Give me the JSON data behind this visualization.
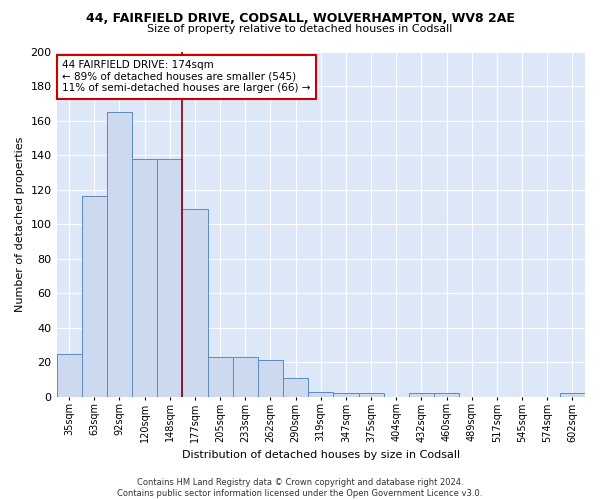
{
  "title_line1": "44, FAIRFIELD DRIVE, CODSALL, WOLVERHAMPTON, WV8 2AE",
  "title_line2": "Size of property relative to detached houses in Codsall",
  "xlabel": "Distribution of detached houses by size in Codsall",
  "ylabel": "Number of detached properties",
  "bin_labels": [
    "35sqm",
    "63sqm",
    "92sqm",
    "120sqm",
    "148sqm",
    "177sqm",
    "205sqm",
    "233sqm",
    "262sqm",
    "290sqm",
    "319sqm",
    "347sqm",
    "375sqm",
    "404sqm",
    "432sqm",
    "460sqm",
    "489sqm",
    "517sqm",
    "545sqm",
    "574sqm",
    "602sqm"
  ],
  "bar_heights": [
    25,
    116,
    165,
    138,
    138,
    109,
    23,
    23,
    21,
    11,
    3,
    2,
    2,
    0,
    2,
    2,
    0,
    0,
    0,
    0,
    2
  ],
  "bar_color": "#ccd9ee",
  "bar_edge_color": "#5b8ac5",
  "vline_x": 4.5,
  "vline_color": "#8b0000",
  "annotation_line1": "44 FAIRFIELD DRIVE: 174sqm",
  "annotation_line2": "← 89% of detached houses are smaller (545)",
  "annotation_line3": "11% of semi-detached houses are larger (66) →",
  "annotation_box_color": "white",
  "annotation_box_edge_color": "#cc0000",
  "footer_text": "Contains HM Land Registry data © Crown copyright and database right 2024.\nContains public sector information licensed under the Open Government Licence v3.0.",
  "ylim": [
    0,
    200
  ],
  "yticks": [
    0,
    20,
    40,
    60,
    80,
    100,
    120,
    140,
    160,
    180,
    200
  ],
  "background_color": "#dce8f8",
  "grid_color": "white",
  "figsize": [
    6.0,
    5.0
  ],
  "dpi": 100
}
